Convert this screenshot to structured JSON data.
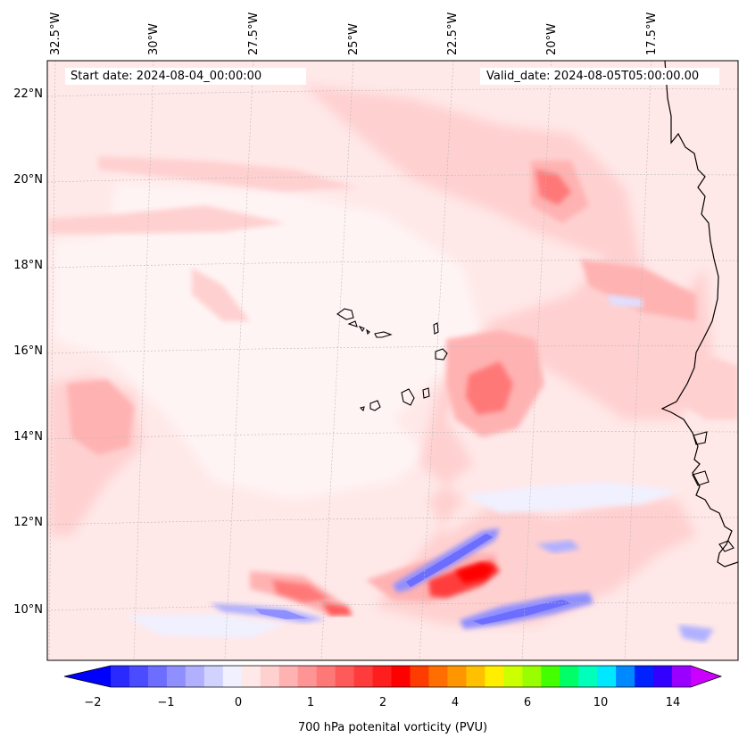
{
  "map": {
    "title_left": "Start date: 2024-08-04_00:00:00",
    "title_right": "Valid_date: 2024-08-05T05:00:00.00",
    "lon_labels": [
      "32.5°W",
      "30°W",
      "27.5°W",
      "25°W",
      "22.5°W",
      "20°W",
      "17.5°W"
    ],
    "lat_labels": [
      "22°N",
      "20°N",
      "18°N",
      "16°N",
      "14°N",
      "12°N",
      "10°N"
    ],
    "features": [
      "Cabo Verde islands",
      "West African coastline"
    ]
  },
  "colorbar": {
    "label": "700 hPa potenital vorticity (PVU)",
    "ticks": [
      "−2",
      "−1",
      "0",
      "1",
      "2",
      "4",
      "6",
      "10",
      "14"
    ],
    "tick_values": [
      -2,
      -1,
      0,
      1,
      2,
      4,
      6,
      10,
      14
    ],
    "colors": [
      "#0000ff",
      "#2a2aff",
      "#4b4bff",
      "#6d6dff",
      "#8f8fff",
      "#b0b0ff",
      "#d2d2ff",
      "#f0f0ff",
      "#ffe8e8",
      "#ffd0d0",
      "#ffb2b2",
      "#ff9494",
      "#ff7878",
      "#ff5a5a",
      "#ff3c3c",
      "#ff1e1e",
      "#ff0000",
      "#ff3c00",
      "#ff6e00",
      "#ff9600",
      "#ffc000",
      "#ffee00",
      "#ccff00",
      "#99ff00",
      "#44ff00",
      "#00ff66",
      "#00ffbb",
      "#00e8ff",
      "#0088ff",
      "#0022ff",
      "#3300ff",
      "#9900ff",
      "#cc00ff"
    ]
  }
}
